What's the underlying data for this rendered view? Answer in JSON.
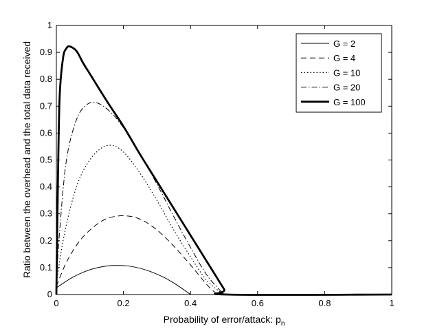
{
  "chart_data": {
    "type": "line",
    "xlabel": "Probability of error/attack: p",
    "xlabel_sub": "n",
    "ylabel": "Ratio between the overhead and the total data received",
    "xlim": [
      0,
      1
    ],
    "ylim": [
      0,
      1
    ],
    "xticks": [
      "0",
      "0.2",
      "0.4",
      "0.6",
      "0.8",
      "1"
    ],
    "yticks": [
      "0",
      "0.1",
      "0.2",
      "0.3",
      "0.4",
      "0.5",
      "0.6",
      "0.7",
      "0.8",
      "0.9",
      "1"
    ],
    "grid": false,
    "legend_position": "top-right",
    "series": [
      {
        "name": "G = 2",
        "style": "solid",
        "x": [
          0,
          0.05,
          0.1,
          0.15,
          0.18,
          0.22,
          0.27,
          0.32,
          0.36,
          0.4
        ],
        "y": [
          0.025,
          0.065,
          0.092,
          0.106,
          0.108,
          0.105,
          0.09,
          0.064,
          0.035,
          0
        ]
      },
      {
        "name": "G = 4",
        "style": "dashed",
        "x": [
          0,
          0.03,
          0.07,
          0.11,
          0.15,
          0.2,
          0.25,
          0.3,
          0.35,
          0.4,
          0.45,
          0.48
        ],
        "y": [
          0.03,
          0.12,
          0.2,
          0.25,
          0.282,
          0.293,
          0.28,
          0.24,
          0.18,
          0.11,
          0.035,
          0
        ]
      },
      {
        "name": "G = 10",
        "style": "dotted",
        "x": [
          0,
          0.02,
          0.05,
          0.08,
          0.12,
          0.16,
          0.2,
          0.25,
          0.3,
          0.35,
          0.4,
          0.45,
          0.5
        ],
        "y": [
          0.04,
          0.2,
          0.36,
          0.46,
          0.53,
          0.555,
          0.53,
          0.45,
          0.35,
          0.24,
          0.14,
          0.05,
          0
        ]
      },
      {
        "name": "G = 20",
        "style": "dashdot",
        "x": [
          0,
          0.01,
          0.03,
          0.06,
          0.09,
          0.12,
          0.16,
          0.2,
          0.25,
          0.3,
          0.35,
          0.4,
          0.45,
          0.5
        ],
        "y": [
          0.05,
          0.24,
          0.5,
          0.65,
          0.705,
          0.713,
          0.68,
          0.62,
          0.52,
          0.41,
          0.29,
          0.175,
          0.07,
          0
        ]
      },
      {
        "name": "G = 100",
        "style": "thick",
        "x": [
          0,
          0.005,
          0.01,
          0.02,
          0.03,
          0.04,
          0.06,
          0.08,
          0.1,
          0.15,
          0.2,
          0.25,
          0.3,
          0.35,
          0.4,
          0.45,
          0.5,
          0.51,
          1
        ],
        "y": [
          0,
          0.45,
          0.74,
          0.88,
          0.915,
          0.922,
          0.905,
          0.86,
          0.82,
          0.72,
          0.625,
          0.52,
          0.42,
          0.32,
          0.22,
          0.12,
          0.02,
          0,
          0
        ]
      }
    ]
  }
}
